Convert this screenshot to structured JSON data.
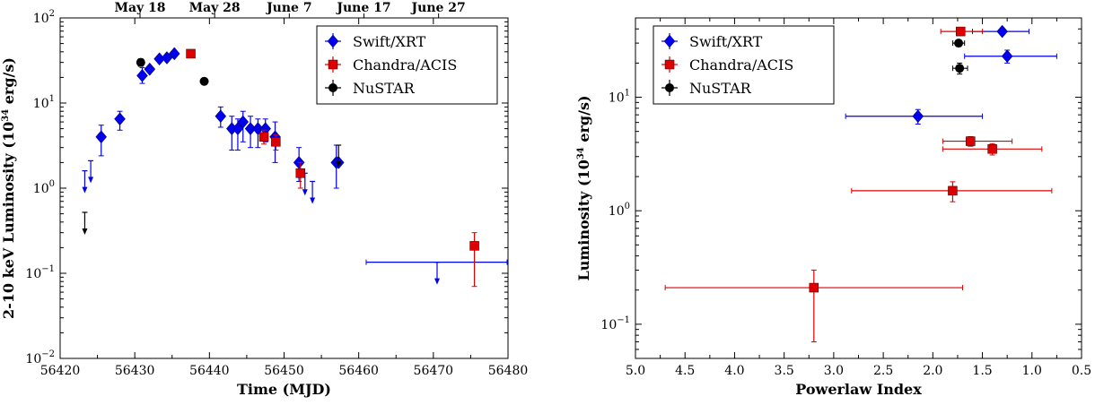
{
  "chart_data": [
    {
      "type": "scatter",
      "xlabel": "Time (MJD)",
      "ylabel": "2-10 keV Luminosity (10",
      "ylabel_sup": "34",
      "ylabel_tail": " erg/s)",
      "xlim": [
        56420,
        56480
      ],
      "ylim": [
        0.01,
        100
      ],
      "yscale": "log",
      "x_ticks": [
        56420,
        56430,
        56440,
        56450,
        56460,
        56470,
        56480
      ],
      "x_tick_labels": [
        "56420",
        "56430",
        "56440",
        "56450",
        "56460",
        "56470",
        "56480"
      ],
      "y_ticks": [
        0.01,
        0.1,
        1,
        10,
        100
      ],
      "y_tick_base": "10",
      "y_tick_exps": [
        "−2",
        "−1",
        "0",
        "1",
        "2"
      ],
      "top_ticks": [
        56430.7,
        56440.7,
        56450.7,
        56460.7,
        56470.7
      ],
      "top_tick_labels": [
        "May 18",
        "May 28",
        "June 7",
        "June 17",
        "June 27"
      ],
      "legend_position": "upper right",
      "series": [
        {
          "name": "Swift/XRT",
          "color": "#0000ee",
          "marker": "diamond",
          "points": [
            {
              "x": 56425.5,
              "y": 4.0,
              "ylo": 2.4,
              "yhi": 5.5
            },
            {
              "x": 56428.0,
              "y": 6.5,
              "ylo": 4.8,
              "yhi": 8.0
            },
            {
              "x": 56431.0,
              "y": 21.0,
              "ylo": 17.0,
              "yhi": 26.0
            },
            {
              "x": 56432.0,
              "y": 25.0
            },
            {
              "x": 56433.3,
              "y": 33.0
            },
            {
              "x": 56434.3,
              "y": 34.0
            },
            {
              "x": 56435.3,
              "y": 38.0
            },
            {
              "x": 56441.5,
              "y": 7.0,
              "ylo": 5.2,
              "yhi": 9.0
            },
            {
              "x": 56443.0,
              "y": 5.0,
              "ylo": 2.8,
              "yhi": 7.0
            },
            {
              "x": 56443.8,
              "y": 5.0,
              "ylo": 2.8,
              "yhi": 6.5
            },
            {
              "x": 56444.5,
              "y": 6.0,
              "ylo": 3.5,
              "yhi": 8.0
            },
            {
              "x": 56445.5,
              "y": 5.0,
              "ylo": 3.0,
              "yhi": 7.0
            },
            {
              "x": 56446.5,
              "y": 5.0,
              "ylo": 3.0,
              "yhi": 6.5
            },
            {
              "x": 56447.5,
              "y": 5.0,
              "ylo": 3.5,
              "yhi": 6.5
            },
            {
              "x": 56448.8,
              "y": 4.0,
              "ylo": 2.0,
              "yhi": 6.0
            },
            {
              "x": 56452.0,
              "y": 2.0,
              "ylo": 1.2,
              "yhi": 3.0
            },
            {
              "x": 56457.0,
              "y": 2.0,
              "ylo": 1.0,
              "yhi": 3.2
            },
            {
              "x": 56457.3,
              "y": 2.0
            }
          ],
          "upper_limits": [
            {
              "x": 56423.3,
              "y": 1.6
            },
            {
              "x": 56424.1,
              "y": 2.1
            },
            {
              "x": 56452.8,
              "y": 1.5
            },
            {
              "x": 56453.8,
              "y": 1.2
            },
            {
              "x": 56470.5,
              "y": 0.135
            }
          ],
          "horizontal_range": {
            "x_from": 56461.0,
            "x_to": 56480.0,
            "y": 0.135
          }
        },
        {
          "name": "Chandra/ACIS",
          "color": "#dd0000",
          "marker": "square",
          "points": [
            {
              "x": 56437.5,
              "y": 38.0
            },
            {
              "x": 56447.3,
              "y": 4.0,
              "ylo": 3.3,
              "yhi": 4.8
            },
            {
              "x": 56448.9,
              "y": 3.5,
              "ylo": 2.8,
              "yhi": 4.2
            },
            {
              "x": 56452.2,
              "y": 1.5,
              "ylo": 1.0,
              "yhi": 2.0
            },
            {
              "x": 56475.5,
              "y": 0.21,
              "ylo": 0.07,
              "yhi": 0.3
            }
          ]
        },
        {
          "name": "NuSTAR",
          "color": "#000000",
          "marker": "circle",
          "points": [
            {
              "x": 56430.8,
              "y": 30.0,
              "ylo": 27.0,
              "yhi": 33.0
            },
            {
              "x": 56439.3,
              "y": 18.0,
              "ylo": 16.5,
              "yhi": 19.5
            }
          ],
          "upper_limits": [
            {
              "x": 56423.3,
              "y": 0.52
            },
            {
              "x": 56457.3,
              "y": 3.2
            }
          ]
        }
      ]
    },
    {
      "type": "scatter",
      "xlabel": "Powerlaw Index",
      "ylabel": "Luminosity (10",
      "ylabel_sup": "34",
      "ylabel_tail": " erg/s)",
      "xlim": [
        5.0,
        0.5
      ],
      "x_inverted": true,
      "ylim": [
        0.05,
        50
      ],
      "yscale": "log",
      "x_ticks": [
        5.0,
        4.5,
        4.0,
        3.5,
        3.0,
        2.5,
        2.0,
        1.5,
        1.0,
        0.5
      ],
      "x_tick_labels": [
        "5.0",
        "4.5",
        "4.0",
        "3.5",
        "3.0",
        "2.5",
        "2.0",
        "1.5",
        "1.0",
        "0.5"
      ],
      "y_ticks": [
        0.1,
        1,
        10
      ],
      "y_tick_base": "10",
      "y_tick_exps": [
        "−1",
        "0",
        "1"
      ],
      "legend_position": "upper left",
      "series": [
        {
          "name": "Swift/XRT",
          "color": "#0000ee",
          "marker": "diamond",
          "points": [
            {
              "x": 1.3,
              "y": 38.0,
              "xlo": 1.03,
              "xhi": 1.6,
              "ylo": 36.0,
              "yhi": 40.0
            },
            {
              "x": 1.25,
              "y": 23.0,
              "xlo": 0.75,
              "xhi": 1.68,
              "ylo": 20.0,
              "yhi": 26.0
            },
            {
              "x": 2.15,
              "y": 6.8,
              "xlo": 1.5,
              "xhi": 2.88,
              "ylo": 5.8,
              "yhi": 7.8
            }
          ]
        },
        {
          "name": "Chandra/ACIS",
          "color": "#dd0000",
          "marker": "square",
          "points": [
            {
              "x": 1.72,
              "y": 38.0,
              "xlo": 1.5,
              "xhi": 1.92,
              "ylo": 35.0,
              "yhi": 41.0
            },
            {
              "x": 1.62,
              "y": 4.1,
              "xlo": 1.2,
              "xhi": 1.9,
              "ylo": 3.7,
              "yhi": 4.5
            },
            {
              "x": 1.4,
              "y": 3.5,
              "xlo": 0.9,
              "xhi": 1.9,
              "ylo": 3.1,
              "yhi": 3.9
            },
            {
              "x": 1.8,
              "y": 1.5,
              "xlo": 0.8,
              "xhi": 2.82,
              "ylo": 1.2,
              "yhi": 1.8
            },
            {
              "x": 3.2,
              "y": 0.21,
              "xlo": 1.7,
              "xhi": 4.7,
              "ylo": 0.07,
              "yhi": 0.3
            }
          ]
        },
        {
          "name": "NuSTAR",
          "color": "#000000",
          "marker": "circle",
          "points": [
            {
              "x": 1.74,
              "y": 30.0,
              "xlo": 1.68,
              "xhi": 1.8,
              "ylo": 28.0,
              "yhi": 32.0
            },
            {
              "x": 1.73,
              "y": 18.0,
              "xlo": 1.65,
              "xhi": 1.8,
              "ylo": 16.0,
              "yhi": 20.0
            }
          ]
        }
      ]
    }
  ]
}
